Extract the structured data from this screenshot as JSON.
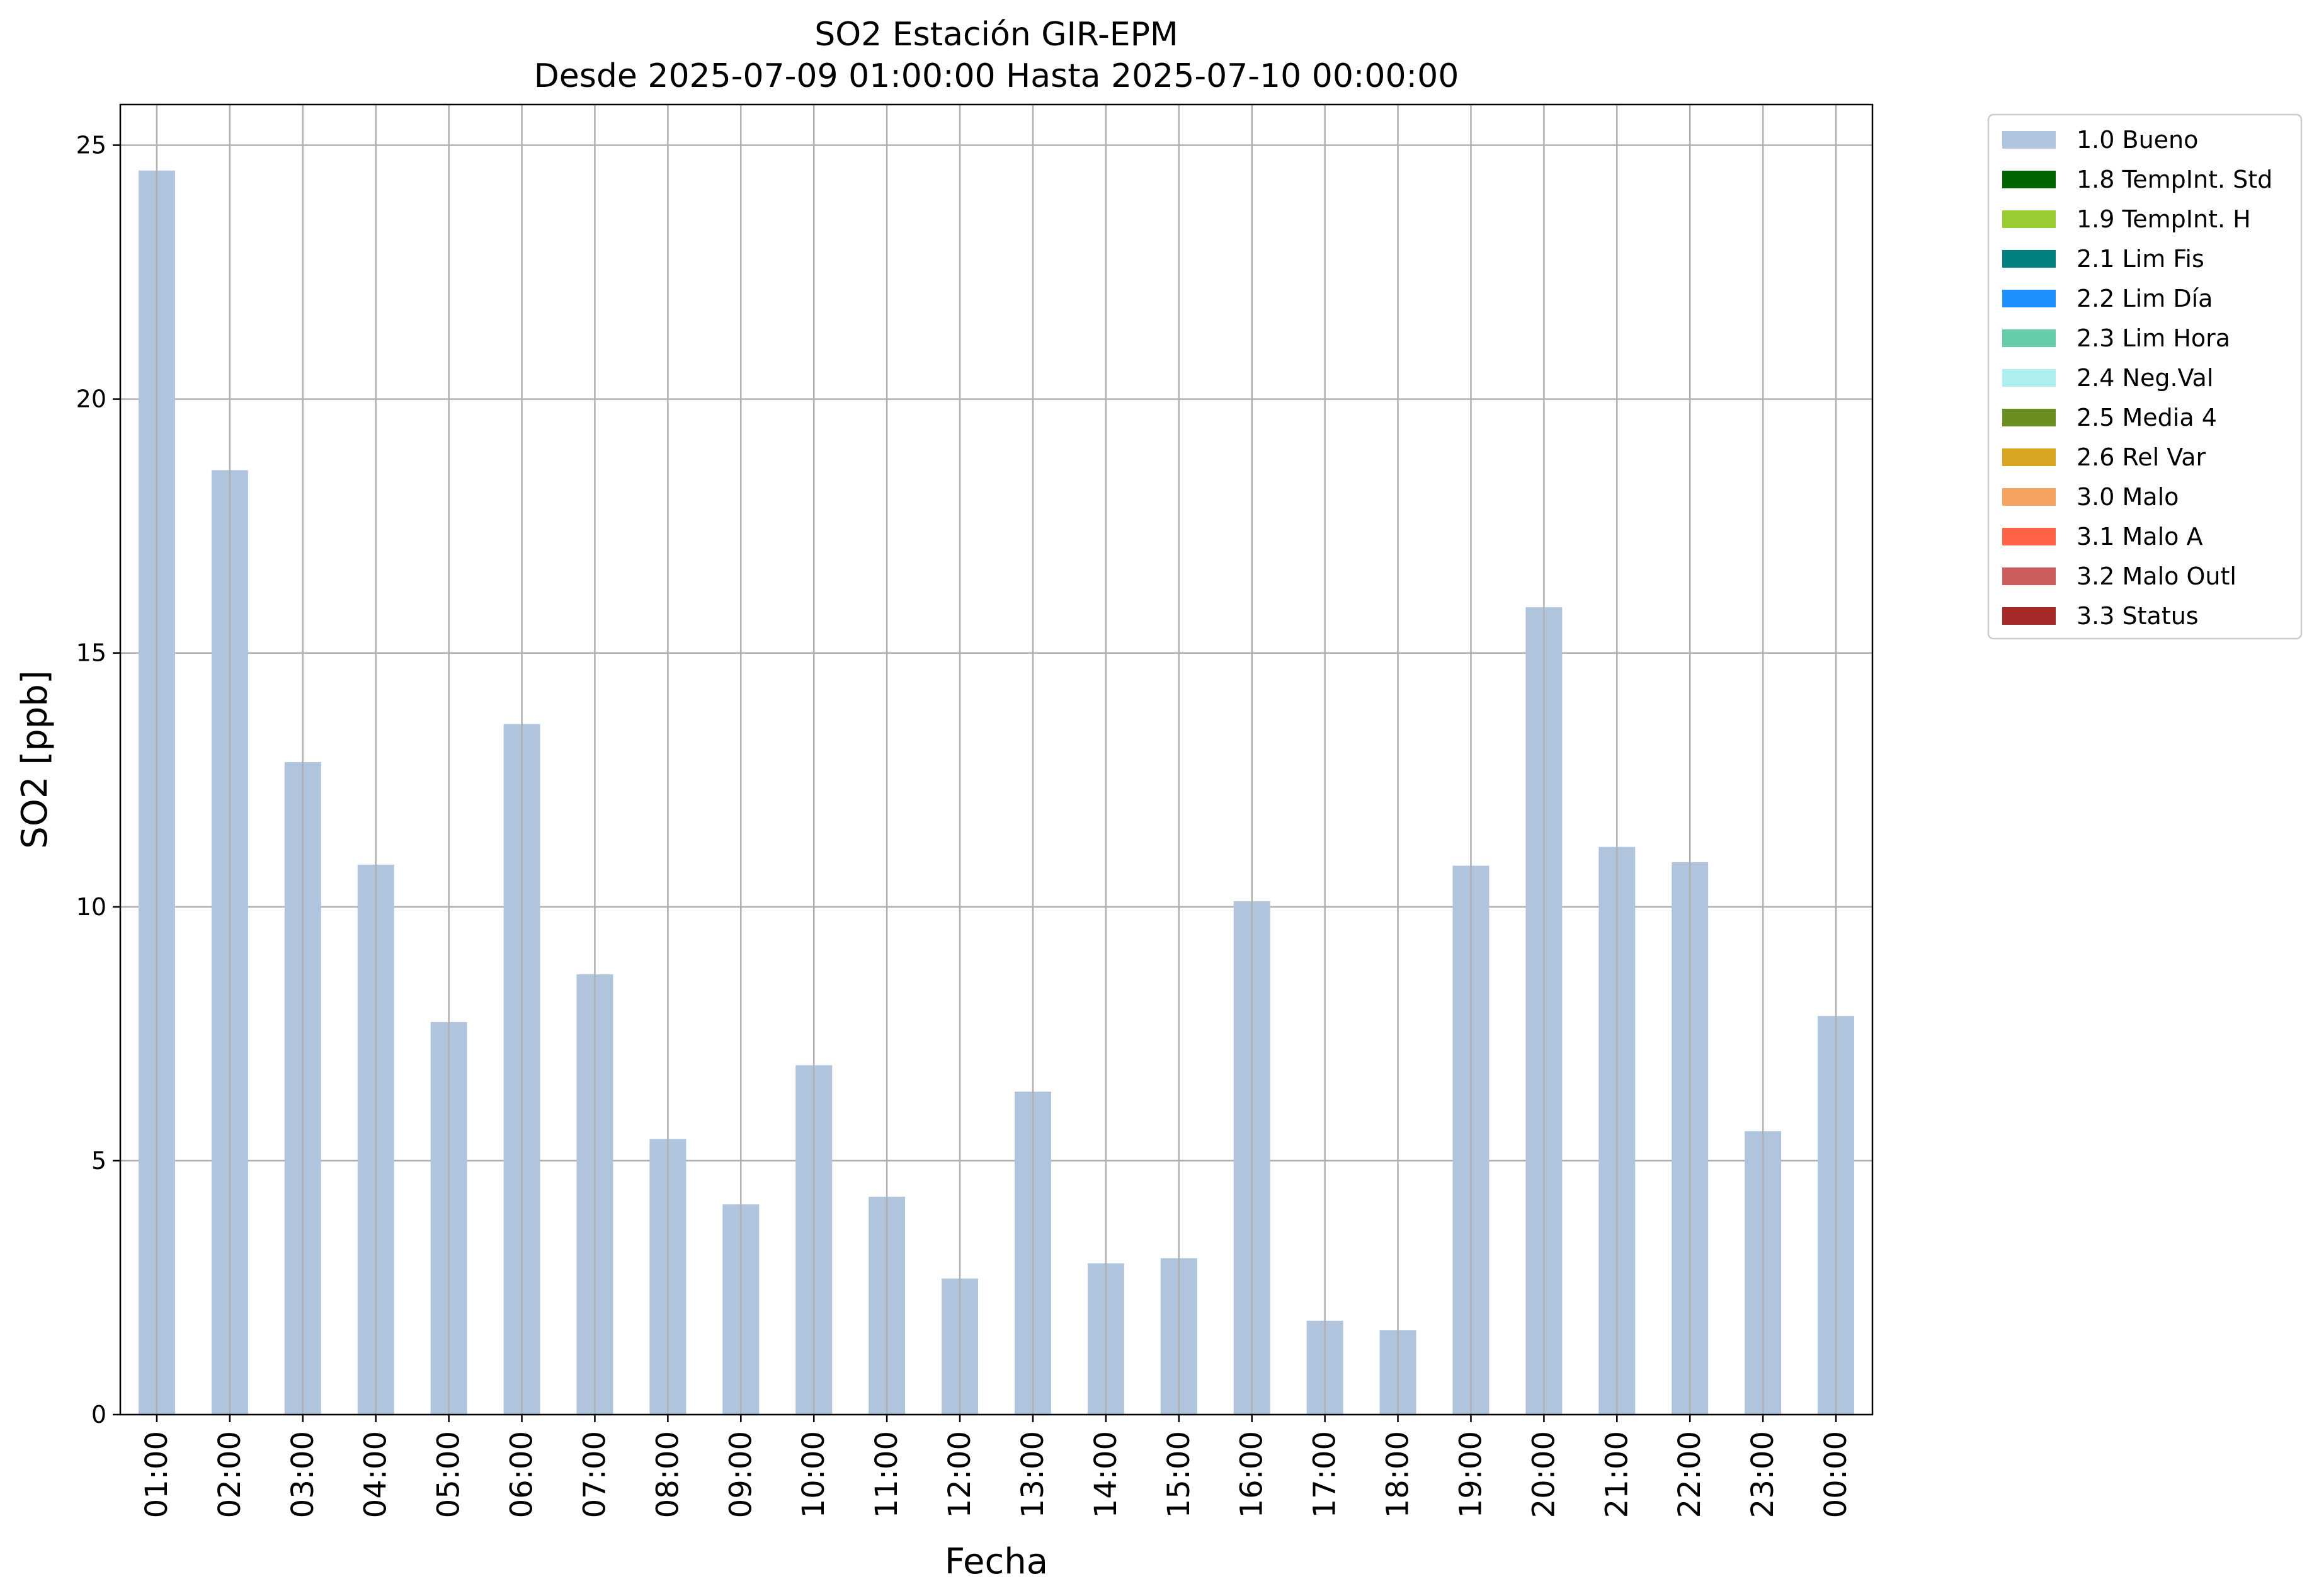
{
  "chart_data": {
    "type": "bar",
    "title": "SO2 Estación GIR-EPM",
    "subtitle": "Desde 2025-07-09 01:00:00 Hasta 2025-07-10 00:00:00",
    "xlabel": "Fecha",
    "ylabel": "SO2 [ppb]",
    "ylim": [
      0,
      25.8
    ],
    "yticks": [
      0,
      5,
      10,
      15,
      20,
      25
    ],
    "grid": true,
    "legend_position": "outside-right-top",
    "categories": [
      "01:00",
      "02:00",
      "03:00",
      "04:00",
      "05:00",
      "06:00",
      "07:00",
      "08:00",
      "09:00",
      "10:00",
      "11:00",
      "12:00",
      "13:00",
      "14:00",
      "15:00",
      "16:00",
      "17:00",
      "18:00",
      "19:00",
      "20:00",
      "21:00",
      "22:00",
      "23:00",
      "00:00"
    ],
    "series": [
      {
        "name": "1.0 Bueno",
        "color": "#b0c4de",
        "values": [
          24.5,
          18.6,
          12.85,
          10.83,
          7.73,
          13.6,
          8.67,
          5.43,
          4.14,
          6.88,
          4.29,
          2.68,
          6.36,
          2.98,
          3.08,
          10.11,
          1.85,
          1.66,
          10.81,
          15.9,
          11.18,
          10.88,
          5.58,
          7.85
        ]
      }
    ],
    "legend": [
      {
        "label": "1.0 Bueno",
        "color": "#b0c4de"
      },
      {
        "label": "1.8 TempInt. Std",
        "color": "#006400"
      },
      {
        "label": "1.9 TempInt. H",
        "color": "#9acd32"
      },
      {
        "label": "2.1 Lim Fis",
        "color": "#008080"
      },
      {
        "label": "2.2 Lim Día",
        "color": "#1e90ff"
      },
      {
        "label": "2.3 Lim Hora",
        "color": "#66cdaa"
      },
      {
        "label": "2.4 Neg.Val",
        "color": "#afeeee"
      },
      {
        "label": "2.5 Media 4",
        "color": "#6b8e23"
      },
      {
        "label": "2.6 Rel Var",
        "color": "#daa520"
      },
      {
        "label": "3.0 Malo",
        "color": "#f4a460"
      },
      {
        "label": "3.1 Malo A",
        "color": "#ff6347"
      },
      {
        "label": "3.2 Malo Outl",
        "color": "#cd5c5c"
      },
      {
        "label": "3.3 Status",
        "color": "#a52a2a"
      }
    ]
  }
}
